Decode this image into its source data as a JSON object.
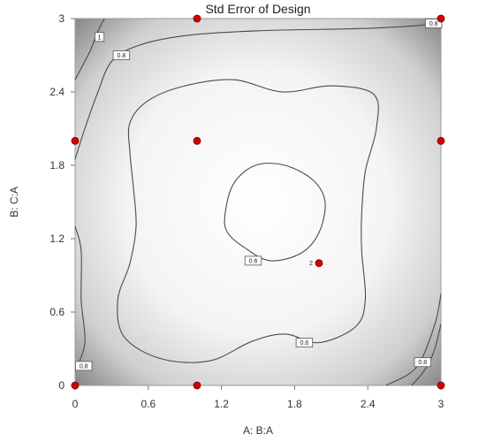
{
  "chart_data": {
    "type": "contour",
    "title": "Std Error of Design",
    "xlabel": "A: B:A",
    "ylabel": "B: C:A",
    "xlim": [
      0,
      3
    ],
    "ylim": [
      0,
      3
    ],
    "x_ticks": [
      "0",
      "0.6",
      "1.2",
      "1.8",
      "2.4",
      "3"
    ],
    "y_ticks": [
      "0",
      "0.6",
      "1.2",
      "1.8",
      "2.4",
      "3"
    ],
    "x_tick_values": [
      0,
      0.6,
      1.2,
      1.8,
      2.4,
      3
    ],
    "y_tick_values": [
      0,
      0.6,
      1.2,
      1.8,
      2.4,
      3
    ],
    "contour_levels": [
      {
        "level": 1,
        "label": "1"
      },
      {
        "level": 0.8,
        "label": "0.8"
      },
      {
        "level": 0.6,
        "label": "0.6"
      }
    ],
    "contours": [
      {
        "level": "1",
        "points": [
          [
            0,
            2.5
          ],
          [
            0.08,
            2.65
          ],
          [
            0.13,
            2.75
          ],
          [
            0.18,
            2.88
          ],
          [
            0.24,
            3
          ]
        ]
      },
      {
        "level": "1",
        "points": [
          [
            2.76,
            0
          ],
          [
            2.84,
            0.09
          ],
          [
            2.9,
            0.18
          ],
          [
            2.95,
            0.3
          ],
          [
            3,
            0.5
          ]
        ]
      },
      {
        "level": "0.8",
        "points": [
          [
            0,
            1.85
          ],
          [
            0.08,
            2.1
          ],
          [
            0.18,
            2.38
          ],
          [
            0.3,
            2.65
          ],
          [
            0.52,
            2.78
          ],
          [
            0.9,
            2.86
          ],
          [
            1.5,
            2.9
          ],
          [
            2.4,
            2.92
          ],
          [
            2.9,
            2.95
          ],
          [
            3,
            2.97
          ]
        ]
      },
      {
        "level": "0.8",
        "points": [
          [
            0,
            0.12
          ],
          [
            0.08,
            0.35
          ],
          [
            0.05,
            0.7
          ],
          [
            0.05,
            1.1
          ],
          [
            0,
            1.3
          ]
        ]
      },
      {
        "level": "0.8",
        "points": [
          [
            2.55,
            0
          ],
          [
            2.8,
            0.15
          ],
          [
            2.95,
            0.5
          ],
          [
            3,
            0.75
          ]
        ]
      },
      {
        "level": "0.6",
        "closed": true,
        "points": [
          [
            0.6,
            2.33
          ],
          [
            0.9,
            2.45
          ],
          [
            1.3,
            2.5
          ],
          [
            1.7,
            2.4
          ],
          [
            2.1,
            2.45
          ],
          [
            2.45,
            2.38
          ],
          [
            2.47,
            2.1
          ],
          [
            2.38,
            1.75
          ],
          [
            2.35,
            1.4
          ],
          [
            2.35,
            1.1
          ],
          [
            2.38,
            0.7
          ],
          [
            2.3,
            0.48
          ],
          [
            2.0,
            0.35
          ],
          [
            1.72,
            0.42
          ],
          [
            1.45,
            0.36
          ],
          [
            1.1,
            0.2
          ],
          [
            0.7,
            0.22
          ],
          [
            0.4,
            0.4
          ],
          [
            0.35,
            0.7
          ],
          [
            0.45,
            1.0
          ],
          [
            0.5,
            1.3
          ],
          [
            0.48,
            1.6
          ],
          [
            0.45,
            1.9
          ],
          [
            0.45,
            2.15
          ]
        ]
      },
      {
        "level": "0.6",
        "closed": true,
        "points": [
          [
            1.23,
            1.4
          ],
          [
            1.3,
            1.65
          ],
          [
            1.48,
            1.8
          ],
          [
            1.72,
            1.8
          ],
          [
            1.95,
            1.68
          ],
          [
            2.05,
            1.5
          ],
          [
            2.0,
            1.25
          ],
          [
            1.85,
            1.08
          ],
          [
            1.6,
            1.02
          ],
          [
            1.4,
            1.12
          ],
          [
            1.25,
            1.25
          ]
        ]
      }
    ],
    "contour_label_positions": [
      {
        "label": "1",
        "x": 0.2,
        "y": 2.85
      },
      {
        "label": "0.8",
        "x": 0.38,
        "y": 2.7
      },
      {
        "label": "0.8",
        "x": 2.94,
        "y": 2.96
      },
      {
        "label": "0.8",
        "x": 0.07,
        "y": 0.16
      },
      {
        "label": "0.8",
        "x": 2.85,
        "y": 0.19
      },
      {
        "label": "0.6",
        "x": 1.46,
        "y": 1.02
      },
      {
        "label": "0.6",
        "x": 1.88,
        "y": 0.35
      }
    ],
    "design_points": [
      {
        "x": 0,
        "y": 0
      },
      {
        "x": 1,
        "y": 0
      },
      {
        "x": 3,
        "y": 0
      },
      {
        "x": 0,
        "y": 2
      },
      {
        "x": 1,
        "y": 2
      },
      {
        "x": 3,
        "y": 2
      },
      {
        "x": 1,
        "y": 3
      },
      {
        "x": 3,
        "y": 3
      },
      {
        "x": 2,
        "y": 1,
        "replicates": "2"
      }
    ],
    "grid": false,
    "colors": {
      "design_point": "#d40000",
      "contour_line": "#4a4a4a",
      "surface_low": "#ffffff",
      "surface_high": "#8a8a8a"
    }
  }
}
